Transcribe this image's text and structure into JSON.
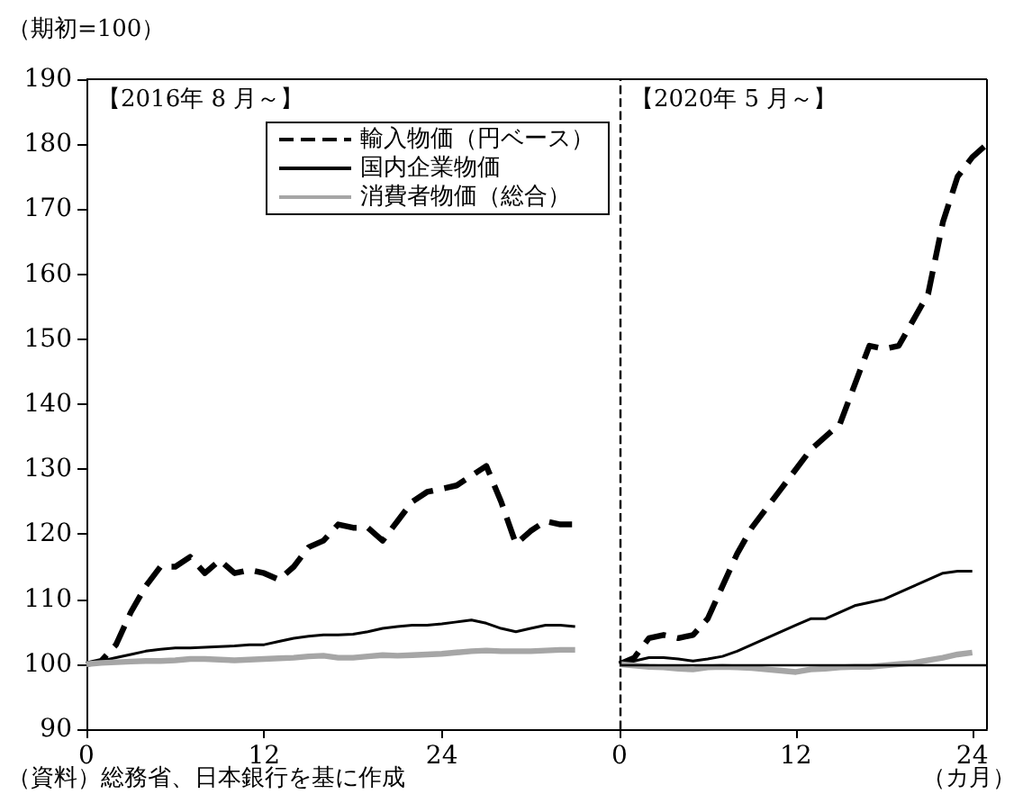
{
  "chart_data": [
    {
      "type": "line",
      "ylabel": "（期初=100）",
      "annotations": [
        "【2016年 8 月～】",
        "（資料）総務省、日本銀行を基に作成"
      ],
      "xlim": [
        0,
        36
      ],
      "ylim": [
        90,
        190
      ],
      "xticks": [
        0,
        12,
        24
      ],
      "yticks": [
        90,
        100,
        110,
        120,
        130,
        140,
        150,
        160,
        170,
        180,
        190
      ],
      "legend": "top",
      "marker": "none",
      "series": [
        {
          "name": "輸入物価（円ベース）",
          "color": "#000000",
          "line_style": "dashed",
          "x": [
            0,
            1,
            2,
            3,
            4,
            5,
            6,
            7,
            8,
            9,
            10,
            11,
            12,
            13,
            14,
            15,
            16,
            17,
            18,
            19,
            20,
            21,
            22,
            23,
            24,
            25,
            26,
            27,
            28,
            29,
            30,
            31,
            32,
            33
          ],
          "values": [
            100,
            100.5,
            103,
            108,
            112,
            115,
            115,
            116.5,
            114,
            116,
            114,
            114.5,
            114,
            113,
            115,
            118,
            119,
            121.5,
            121,
            121,
            119,
            122,
            125,
            126.5,
            127,
            127.5,
            129,
            130.5,
            125,
            118.5,
            120.5,
            122,
            121.5,
            121.5
          ]
        },
        {
          "name": "国内企業物価",
          "color": "#000000",
          "line_style": "solid",
          "x": [
            0,
            1,
            2,
            3,
            4,
            5,
            6,
            7,
            8,
            9,
            10,
            11,
            12,
            13,
            14,
            15,
            16,
            17,
            18,
            19,
            20,
            21,
            22,
            23,
            24,
            25,
            26,
            27,
            28,
            29,
            30,
            31,
            32,
            33
          ],
          "values": [
            100,
            100.5,
            101,
            101.5,
            102,
            102.3,
            102.5,
            102.5,
            102.6,
            102.7,
            102.8,
            103,
            103,
            103.5,
            104,
            104.3,
            104.5,
            104.5,
            104.6,
            105,
            105.5,
            105.8,
            106,
            106,
            106.2,
            106.5,
            106.8,
            106.3,
            105.5,
            105,
            105.5,
            106,
            106,
            105.8
          ]
        },
        {
          "name": "消費者物価（総合）",
          "color": "#a6a6a6",
          "line_style": "solid",
          "x": [
            0,
            1,
            2,
            3,
            4,
            5,
            6,
            7,
            8,
            9,
            10,
            11,
            12,
            13,
            14,
            15,
            16,
            17,
            18,
            19,
            20,
            21,
            22,
            23,
            24,
            25,
            26,
            27,
            28,
            29,
            30,
            31,
            32,
            33
          ],
          "values": [
            100,
            100.2,
            100.3,
            100.4,
            100.5,
            100.5,
            100.6,
            100.8,
            100.8,
            100.7,
            100.6,
            100.7,
            100.8,
            100.9,
            101,
            101.2,
            101.3,
            101,
            101,
            101.2,
            101.4,
            101.3,
            101.4,
            101.5,
            101.6,
            101.8,
            102,
            102.1,
            102,
            102,
            102,
            102.1,
            102.2,
            102.2
          ]
        }
      ]
    },
    {
      "type": "line",
      "xlabel": "（カ月）",
      "annotations": [
        "【2020年 5 月～】"
      ],
      "xlim": [
        0,
        25
      ],
      "ylim": [
        90,
        190
      ],
      "xticks": [
        0,
        12,
        24
      ],
      "tick_labels": "x",
      "marker": "none",
      "ref_lines": [
        {
          "axis": "x",
          "value": 0,
          "color": "#000000",
          "line_style": "dashed"
        },
        {
          "axis": "y",
          "value": 100,
          "color": "#000000",
          "line_style": "solid"
        }
      ],
      "series": [
        {
          "color": "#000000",
          "line_style": "dashed",
          "x": [
            0,
            1,
            2,
            3,
            4,
            5,
            6,
            7,
            8,
            9,
            10,
            11,
            12,
            13,
            14,
            15,
            16,
            17,
            18,
            19,
            20,
            21,
            22,
            23,
            24,
            25
          ],
          "values": [
            100,
            101,
            104,
            104.5,
            104,
            104.5,
            107,
            112,
            117,
            121,
            124,
            127,
            130,
            133,
            135,
            137,
            143,
            149,
            148.5,
            149,
            153,
            157,
            168,
            175,
            178,
            180
          ]
        },
        {
          "color": "#000000",
          "line_style": "solid",
          "x": [
            0,
            1,
            2,
            3,
            4,
            5,
            6,
            7,
            8,
            9,
            10,
            11,
            12,
            13,
            14,
            15,
            16,
            17,
            18,
            19,
            20,
            21,
            22,
            23,
            24
          ],
          "values": [
            100,
            100.5,
            101,
            101,
            100.8,
            100.5,
            100.8,
            101.2,
            102,
            103,
            104,
            105,
            106,
            107,
            107,
            108,
            109,
            109.5,
            110,
            111,
            112,
            113,
            114,
            114.3,
            114.3
          ]
        },
        {
          "color": "#a6a6a6",
          "line_style": "solid",
          "x": [
            0,
            1,
            2,
            3,
            4,
            5,
            6,
            7,
            8,
            9,
            10,
            11,
            12,
            13,
            14,
            15,
            16,
            17,
            18,
            19,
            20,
            21,
            22,
            23,
            24
          ],
          "values": [
            100,
            99.8,
            99.6,
            99.5,
            99.3,
            99.2,
            99.5,
            99.6,
            99.5,
            99.4,
            99.2,
            99,
            98.8,
            99.2,
            99.3,
            99.5,
            99.6,
            99.6,
            99.8,
            100,
            100.2,
            100.6,
            101,
            101.5,
            101.8
          ]
        }
      ]
    }
  ]
}
